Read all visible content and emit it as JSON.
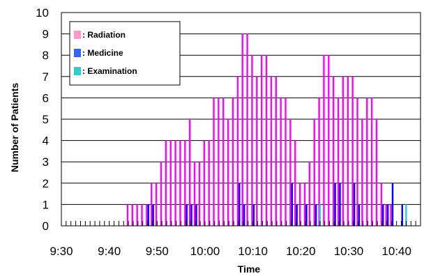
{
  "chart_data": {
    "type": "bar",
    "title": "",
    "xlabel": "Time",
    "ylabel": "Number of Patients",
    "ylim": [
      0,
      10
    ],
    "y_ticks": [
      "0",
      "1",
      "2",
      "3",
      "4",
      "5",
      "6",
      "7",
      "8",
      "9",
      "10"
    ],
    "x_tick_labels": [
      "9:30",
      "9:40",
      "9:50",
      "10:00",
      "10:10",
      "10:20",
      "10:30",
      "10:40"
    ],
    "x_range": [
      "9:30",
      "10:45"
    ],
    "grid": "horizontal",
    "legend_position": "top-left",
    "series": [
      {
        "name": "Radiation",
        "color": "#ff00ff",
        "legend_color": "#ff99cc",
        "points": [
          [
            "9:44",
            1
          ],
          [
            "9:45",
            1
          ],
          [
            "9:46",
            1
          ],
          [
            "9:47",
            1
          ],
          [
            "9:48",
            1
          ],
          [
            "9:49",
            2
          ],
          [
            "9:50",
            2
          ],
          [
            "9:51",
            3
          ],
          [
            "9:52",
            4
          ],
          [
            "9:53",
            4
          ],
          [
            "9:54",
            4
          ],
          [
            "9:55",
            4
          ],
          [
            "9:56",
            4
          ],
          [
            "9:57",
            5
          ],
          [
            "9:58",
            3
          ],
          [
            "9:59",
            3
          ],
          [
            "10:00",
            4
          ],
          [
            "10:01",
            4
          ],
          [
            "10:02",
            6
          ],
          [
            "10:03",
            6
          ],
          [
            "10:04",
            6
          ],
          [
            "10:05",
            5
          ],
          [
            "10:06",
            6
          ],
          [
            "10:07",
            7
          ],
          [
            "10:08",
            9
          ],
          [
            "10:09",
            9
          ],
          [
            "10:10",
            8
          ],
          [
            "10:11",
            7
          ],
          [
            "10:12",
            8
          ],
          [
            "10:13",
            8
          ],
          [
            "10:14",
            7
          ],
          [
            "10:15",
            7
          ],
          [
            "10:16",
            6
          ],
          [
            "10:17",
            6
          ],
          [
            "10:18",
            5
          ],
          [
            "10:19",
            4
          ],
          [
            "10:20",
            2
          ],
          [
            "10:21",
            2
          ],
          [
            "10:22",
            3
          ],
          [
            "10:23",
            5
          ],
          [
            "10:24",
            6
          ],
          [
            "10:25",
            8
          ],
          [
            "10:26",
            8
          ],
          [
            "10:27",
            7
          ],
          [
            "10:28",
            6
          ],
          [
            "10:29",
            7
          ],
          [
            "10:30",
            7
          ],
          [
            "10:31",
            7
          ],
          [
            "10:32",
            6
          ],
          [
            "10:33",
            5
          ],
          [
            "10:34",
            6
          ],
          [
            "10:35",
            6
          ],
          [
            "10:36",
            5
          ],
          [
            "10:37",
            2
          ],
          [
            "10:38",
            1
          ],
          [
            "10:39",
            1
          ]
        ]
      },
      {
        "name": "Medicine",
        "color": "#0000ff",
        "legend_color": "#3366ff",
        "points": [
          [
            "9:48",
            1
          ],
          [
            "9:49",
            1
          ],
          [
            "9:56",
            1
          ],
          [
            "9:57",
            1
          ],
          [
            "9:58",
            1
          ],
          [
            "10:07",
            2
          ],
          [
            "10:08",
            1
          ],
          [
            "10:10",
            1
          ],
          [
            "10:18",
            2
          ],
          [
            "10:19",
            1
          ],
          [
            "10:21",
            1
          ],
          [
            "10:23",
            1
          ],
          [
            "10:27",
            2
          ],
          [
            "10:28",
            2
          ],
          [
            "10:31",
            2
          ],
          [
            "10:32",
            1
          ],
          [
            "10:37",
            1
          ],
          [
            "10:38",
            1
          ],
          [
            "10:39",
            2
          ],
          [
            "10:41",
            1
          ]
        ]
      },
      {
        "name": "Examination",
        "color": "#33cccc",
        "legend_color": "#33cccc",
        "points": [
          [
            "10:24",
            1
          ],
          [
            "10:42",
            1
          ]
        ]
      }
    ]
  }
}
